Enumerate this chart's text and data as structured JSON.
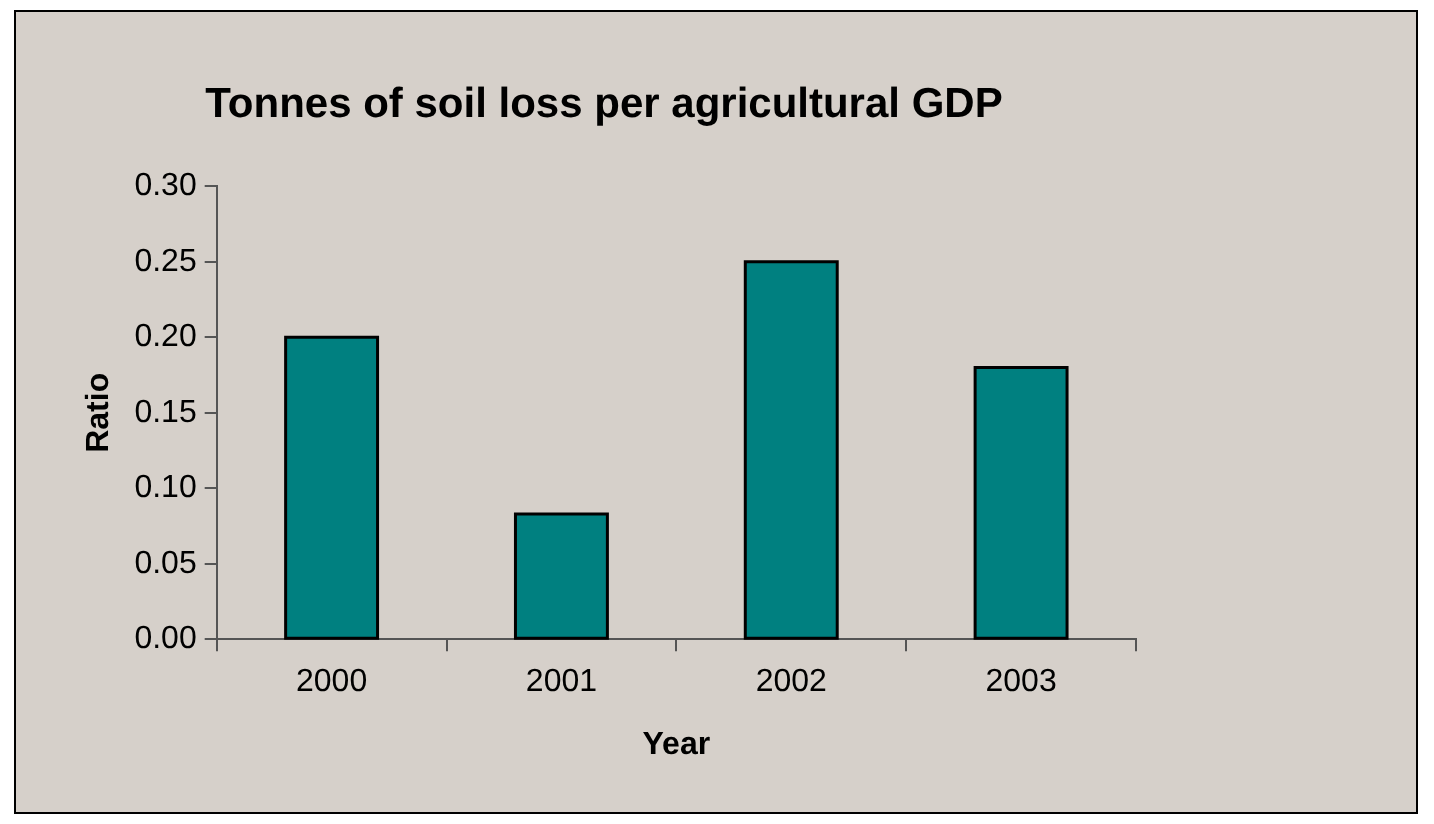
{
  "chart_data": {
    "type": "bar",
    "title": "Tonnes of soil loss per agricultural GDP",
    "xlabel": "Year",
    "ylabel": "Ratio",
    "categories": [
      "2000",
      "2001",
      "2002",
      "2003"
    ],
    "values": [
      0.2,
      0.083,
      0.25,
      0.18
    ],
    "color": "#008080",
    "ylim": [
      0,
      0.3
    ],
    "yticks": [
      {
        "value": 0,
        "label": "0.00"
      },
      0.05,
      {
        "value": 0.1,
        "label": "0.10"
      },
      0.15,
      {
        "value": 0.2,
        "label": "0.20"
      },
      0.25,
      {
        "value": 0.3,
        "label": "0.30"
      }
    ],
    "grid": false,
    "legend": false
  }
}
